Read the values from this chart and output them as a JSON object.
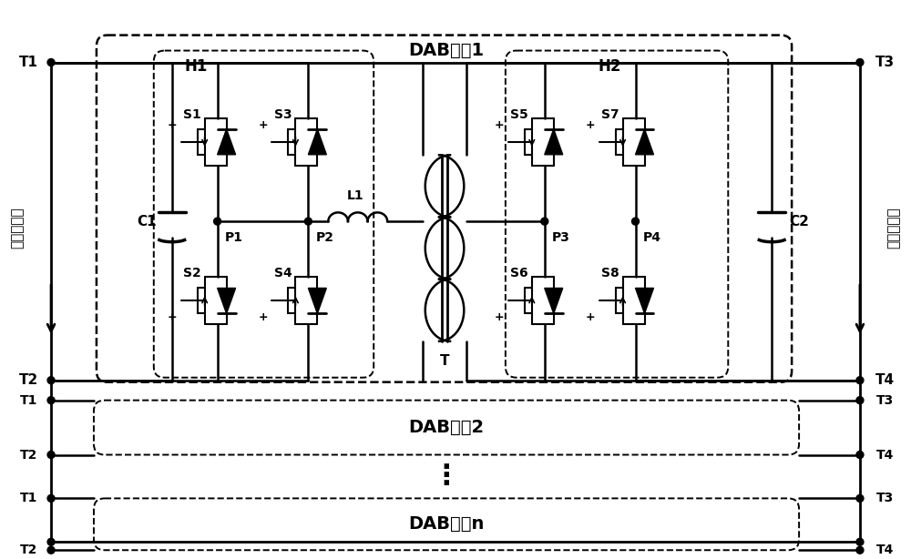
{
  "fig_width": 10.0,
  "fig_height": 6.14,
  "bg_color": "#ffffff",
  "labels": {
    "T1": "T1",
    "T2": "T2",
    "T3": "T3",
    "T4": "T4",
    "H1": "H1",
    "H2": "H2",
    "DAB1": "DAB单刱1",
    "DAB2": "DAB单刱2",
    "DABn": "DAB单元n",
    "C1": "C1",
    "C2": "C2",
    "S1": "S1",
    "S2": "S2",
    "S3": "S3",
    "S4": "S4",
    "S5": "S5",
    "S6": "S6",
    "S7": "S7",
    "S8": "S8",
    "P1": "P1",
    "P2": "P2",
    "P3": "P3",
    "P4": "P4",
    "L1": "L1",
    "T_label": "T",
    "high_dc": "高压直流侧",
    "low_dc": "低压直流侧"
  }
}
